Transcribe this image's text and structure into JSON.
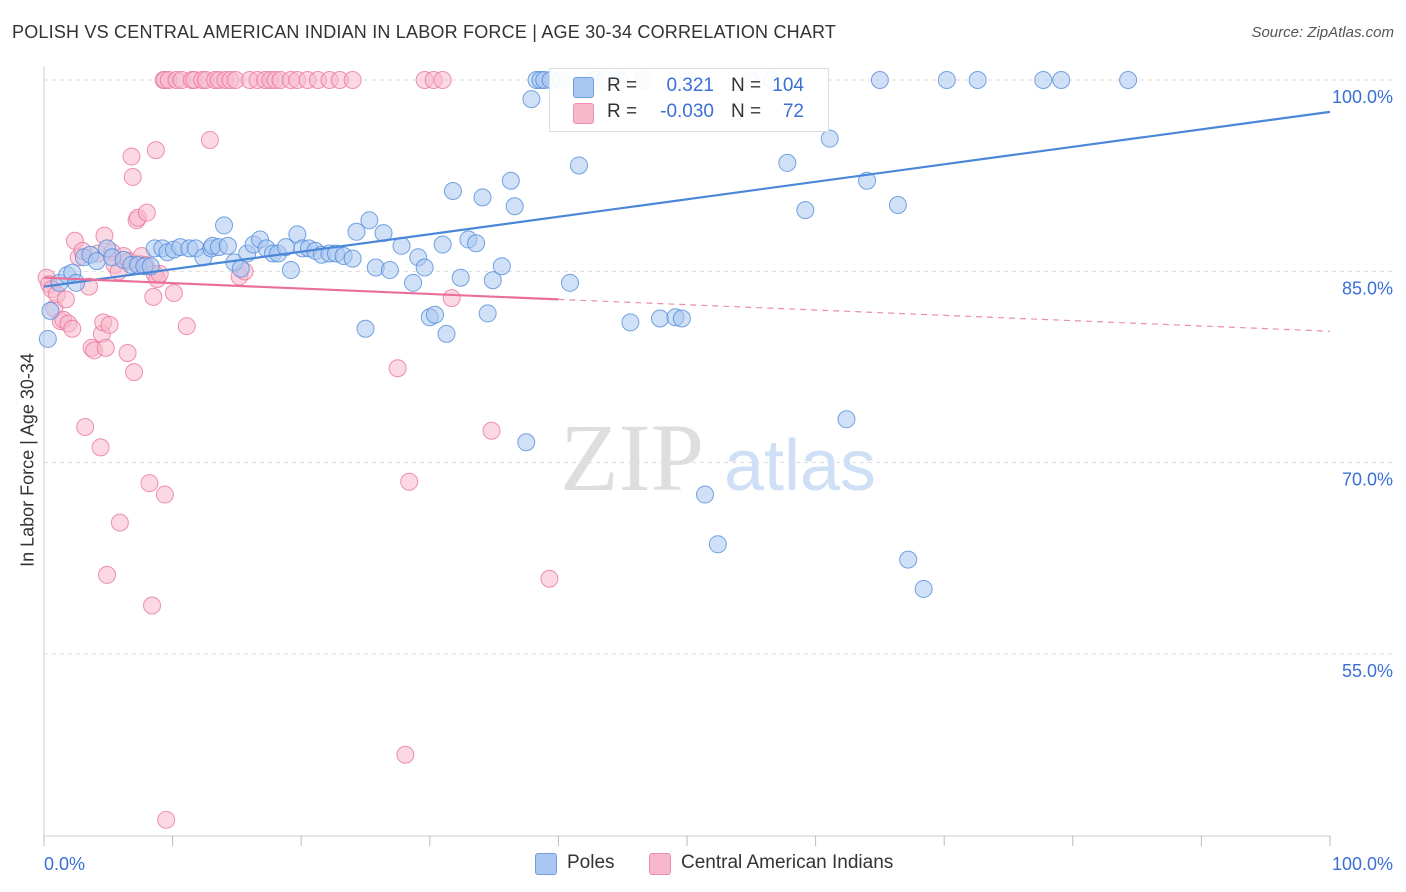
{
  "title": "POLISH VS CENTRAL AMERICAN INDIAN IN LABOR FORCE | AGE 30-34 CORRELATION CHART",
  "source": "Source: ZipAtlas.com",
  "watermark": {
    "part1": "ZIP",
    "part2": "atlas"
  },
  "legend_top": {
    "rows": [
      {
        "r_label": "R =",
        "r_value": "0.321",
        "n_label": "N =",
        "n_value": "104",
        "color": "#a9c6f0"
      },
      {
        "r_label": "R =",
        "r_value": "-0.030",
        "n_label": "N =",
        "n_value": "72",
        "color": "#f7b8cb"
      }
    ]
  },
  "legend_bottom": [
    {
      "label": "Poles",
      "color": "#a9c6f0"
    },
    {
      "label": "Central American Indians",
      "color": "#f7b8cb"
    }
  ],
  "chart_data": {
    "type": "scatter",
    "title": "POLISH VS CENTRAL AMERICAN INDIAN IN LABOR FORCE | AGE 30-34 CORRELATION CHART",
    "xlabel": "",
    "ylabel": "In Labor Force | Age 30-34",
    "x_tick_labels": [
      "0.0%",
      "100.0%"
    ],
    "y_tick_labels": [
      "100.0%",
      "85.0%",
      "70.0%",
      "55.0%"
    ],
    "xlim": [
      0,
      100
    ],
    "ylim": [
      41.5,
      101.5
    ],
    "grid": "horizontal dashed",
    "legend_placement": "bottom",
    "series": [
      {
        "name": "Poles",
        "color": "#4a87d8",
        "fill": "#a9c6f0",
        "trend": {
          "x": [
            0,
            100
          ],
          "y": [
            83.8,
            97.5
          ],
          "style": "solid"
        },
        "points": [
          [
            0.3,
            79.7
          ],
          [
            0.5,
            81.9
          ],
          [
            1.2,
            84.1
          ],
          [
            1.8,
            84.7
          ],
          [
            2.2,
            84.9
          ],
          [
            2.5,
            84.1
          ],
          [
            3.1,
            86.1
          ],
          [
            3.6,
            86.3
          ],
          [
            4.1,
            85.8
          ],
          [
            4.9,
            86.8
          ],
          [
            5.3,
            86.1
          ],
          [
            6.2,
            85.9
          ],
          [
            6.8,
            85.5
          ],
          [
            7.3,
            85.5
          ],
          [
            7.8,
            85.4
          ],
          [
            8.3,
            85.4
          ],
          [
            8.6,
            86.8
          ],
          [
            9.2,
            86.8
          ],
          [
            9.6,
            86.5
          ],
          [
            10.1,
            86.7
          ],
          [
            10.6,
            86.9
          ],
          [
            11.3,
            86.8
          ],
          [
            11.8,
            86.8
          ],
          [
            12.4,
            86.1
          ],
          [
            13.0,
            86.8
          ],
          [
            13.1,
            87.0
          ],
          [
            13.6,
            86.9
          ],
          [
            14.0,
            88.6
          ],
          [
            14.3,
            87.0
          ],
          [
            14.8,
            85.7
          ],
          [
            15.3,
            85.2
          ],
          [
            15.8,
            86.4
          ],
          [
            16.3,
            87.1
          ],
          [
            16.8,
            87.5
          ],
          [
            17.3,
            86.8
          ],
          [
            17.8,
            86.4
          ],
          [
            18.2,
            86.4
          ],
          [
            18.8,
            86.9
          ],
          [
            19.2,
            85.1
          ],
          [
            19.7,
            87.9
          ],
          [
            20.1,
            86.8
          ],
          [
            20.6,
            86.8
          ],
          [
            21.1,
            86.6
          ],
          [
            21.6,
            86.3
          ],
          [
            22.2,
            86.4
          ],
          [
            22.7,
            86.4
          ],
          [
            23.3,
            86.2
          ],
          [
            24.0,
            86.0
          ],
          [
            24.3,
            88.1
          ],
          [
            25.0,
            80.5
          ],
          [
            25.3,
            89.0
          ],
          [
            25.8,
            85.3
          ],
          [
            26.4,
            88.0
          ],
          [
            26.9,
            85.1
          ],
          [
            27.8,
            87.0
          ],
          [
            28.7,
            84.1
          ],
          [
            29.1,
            86.1
          ],
          [
            29.6,
            85.3
          ],
          [
            30.0,
            81.4
          ],
          [
            30.4,
            81.6
          ],
          [
            31.0,
            87.1
          ],
          [
            31.3,
            80.1
          ],
          [
            31.8,
            91.3
          ],
          [
            32.4,
            84.5
          ],
          [
            33.0,
            87.5
          ],
          [
            33.6,
            87.2
          ],
          [
            34.1,
            90.8
          ],
          [
            34.5,
            81.7
          ],
          [
            34.9,
            84.3
          ],
          [
            35.6,
            85.4
          ],
          [
            36.3,
            92.1
          ],
          [
            36.6,
            90.1
          ],
          [
            37.5,
            71.6
          ],
          [
            37.9,
            98.5
          ],
          [
            38.3,
            100.0
          ],
          [
            38.6,
            100.0
          ],
          [
            38.9,
            100.0
          ],
          [
            39.4,
            100.0
          ],
          [
            40.2,
            100.0
          ],
          [
            40.9,
            84.1
          ],
          [
            41.6,
            93.3
          ],
          [
            42.6,
            100.0
          ],
          [
            42.9,
            100.0
          ],
          [
            43.6,
            100.0
          ],
          [
            44.8,
            100.0
          ],
          [
            45.6,
            81.0
          ],
          [
            46.6,
            100.0
          ],
          [
            47.9,
            81.3
          ],
          [
            49.1,
            81.4
          ],
          [
            49.6,
            81.3
          ],
          [
            50.1,
            100.0
          ],
          [
            51.4,
            67.5
          ],
          [
            52.4,
            63.6
          ],
          [
            54.9,
            100.0
          ],
          [
            56.6,
            100.0
          ],
          [
            57.8,
            93.5
          ],
          [
            59.2,
            89.8
          ],
          [
            61.1,
            95.4
          ],
          [
            62.4,
            73.4
          ],
          [
            64.0,
            92.1
          ],
          [
            65.0,
            100.0
          ],
          [
            66.4,
            90.2
          ],
          [
            67.2,
            62.4
          ],
          [
            68.4,
            60.1
          ],
          [
            70.2,
            100.0
          ],
          [
            72.6,
            100.0
          ],
          [
            77.7,
            100.0
          ],
          [
            79.1,
            100.0
          ],
          [
            84.3,
            100.0
          ]
        ]
      },
      {
        "name": "Central American Indians",
        "color": "#e96f9a",
        "fill": "#f7b8cb",
        "trend": {
          "x": [
            0,
            40
          ],
          "y": [
            84.5,
            82.8
          ],
          "style": "solid",
          "extension": {
            "x": [
              40,
              100
            ],
            "y": [
              82.8,
              80.3
            ],
            "style": "dashed"
          }
        },
        "points": [
          [
            0.2,
            84.5
          ],
          [
            0.4,
            84.0
          ],
          [
            0.6,
            83.6
          ],
          [
            0.8,
            82.1
          ],
          [
            1.0,
            83.2
          ],
          [
            1.3,
            81.1
          ],
          [
            1.5,
            81.2
          ],
          [
            1.7,
            82.8
          ],
          [
            1.9,
            80.9
          ],
          [
            2.2,
            80.5
          ],
          [
            2.4,
            87.4
          ],
          [
            2.7,
            86.1
          ],
          [
            3.0,
            86.6
          ],
          [
            3.2,
            72.8
          ],
          [
            3.5,
            83.8
          ],
          [
            3.7,
            79.0
          ],
          [
            3.9,
            78.8
          ],
          [
            4.2,
            86.4
          ],
          [
            4.4,
            71.2
          ],
          [
            4.5,
            80.1
          ],
          [
            4.6,
            81.0
          ],
          [
            4.7,
            87.8
          ],
          [
            4.8,
            79.0
          ],
          [
            4.9,
            61.2
          ],
          [
            5.1,
            80.8
          ],
          [
            5.3,
            86.5
          ],
          [
            5.5,
            85.5
          ],
          [
            5.8,
            85.0
          ],
          [
            5.9,
            65.3
          ],
          [
            6.2,
            86.2
          ],
          [
            6.5,
            78.6
          ],
          [
            6.6,
            85.8
          ],
          [
            6.8,
            94.0
          ],
          [
            6.9,
            92.4
          ],
          [
            7.0,
            77.1
          ],
          [
            7.2,
            89.0
          ],
          [
            7.3,
            89.2
          ],
          [
            7.4,
            85.6
          ],
          [
            7.6,
            86.2
          ],
          [
            7.9,
            85.5
          ],
          [
            8.0,
            89.6
          ],
          [
            8.2,
            68.4
          ],
          [
            8.4,
            58.8
          ],
          [
            8.5,
            83.0
          ],
          [
            8.6,
            84.8
          ],
          [
            8.7,
            94.5
          ],
          [
            8.8,
            84.4
          ],
          [
            9.0,
            84.8
          ],
          [
            9.3,
            100.0
          ],
          [
            9.4,
            100.0
          ],
          [
            9.7,
            100.0
          ],
          [
            10.3,
            100.0
          ],
          [
            10.7,
            100.0
          ],
          [
            11.1,
            80.7
          ],
          [
            11.5,
            100.0
          ],
          [
            11.7,
            100.0
          ],
          [
            12.3,
            100.0
          ],
          [
            12.6,
            100.0
          ],
          [
            12.9,
            95.3
          ],
          [
            13.3,
            100.0
          ],
          [
            13.6,
            100.0
          ],
          [
            14.1,
            100.0
          ],
          [
            14.5,
            100.0
          ],
          [
            14.9,
            100.0
          ],
          [
            15.2,
            84.6
          ],
          [
            15.6,
            85.0
          ],
          [
            16.0,
            100.0
          ],
          [
            16.6,
            100.0
          ],
          [
            17.2,
            100.0
          ],
          [
            17.6,
            100.0
          ],
          [
            18.0,
            100.0
          ],
          [
            18.4,
            100.0
          ],
          [
            19.2,
            100.0
          ],
          [
            19.7,
            100.0
          ],
          [
            20.5,
            100.0
          ],
          [
            21.3,
            100.0
          ],
          [
            22.2,
            100.0
          ],
          [
            23.0,
            100.0
          ],
          [
            24.0,
            100.0
          ],
          [
            27.5,
            77.4
          ],
          [
            28.1,
            47.1
          ],
          [
            28.4,
            68.5
          ],
          [
            29.6,
            100.0
          ],
          [
            30.3,
            100.0
          ],
          [
            31.0,
            100.0
          ],
          [
            31.7,
            82.9
          ],
          [
            34.8,
            72.5
          ],
          [
            39.3,
            60.9
          ],
          [
            9.4,
            67.5
          ],
          [
            9.5,
            42.0
          ],
          [
            10.1,
            83.3
          ]
        ]
      }
    ]
  }
}
